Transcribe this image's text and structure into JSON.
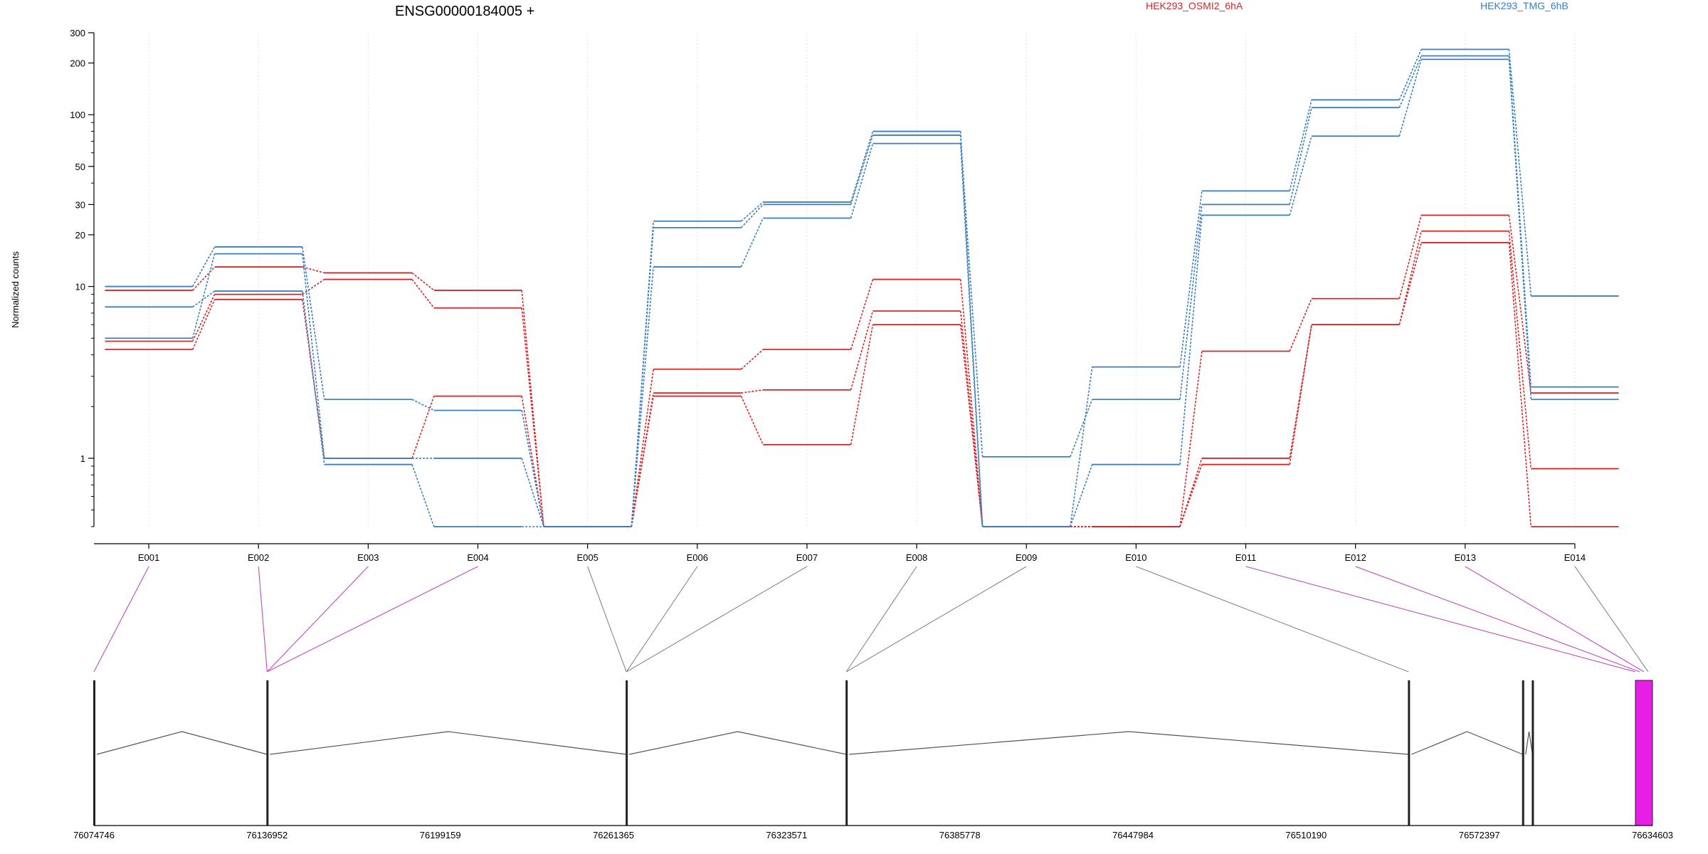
{
  "chart_data": {
    "type": "line",
    "title": "ENSG00000184005 +",
    "ylabel": "Normalized counts",
    "xlabel": "",
    "y_scale": "log",
    "y_ticks": [
      1,
      10,
      20,
      30,
      50,
      100,
      200,
      300
    ],
    "ylim": [
      0.4,
      300
    ],
    "legend_placement": "top",
    "categories": [
      "E001",
      "E002",
      "E003",
      "E004",
      "E005",
      "E006",
      "E007",
      "E008",
      "E009",
      "E010",
      "E011",
      "E012",
      "E013",
      "E014"
    ],
    "series": [
      {
        "name": "HEK293_OSMI2_6hA",
        "color": "#d62728",
        "values": [
          9.5,
          13,
          12,
          9.5,
          0.4,
          3.3,
          4.3,
          11,
          0.4,
          0.4,
          4.2,
          8.5,
          26,
          2.4
        ]
      },
      {
        "name": "",
        "color": "#d62728",
        "values": [
          4.8,
          9,
          11,
          7.5,
          0.4,
          2.4,
          2.5,
          7.2,
          0.4,
          0.4,
          1.0,
          6.0,
          21,
          0.87
        ]
      },
      {
        "name": "",
        "color": "#d62728",
        "values": [
          4.3,
          8.4,
          1.0,
          2.3,
          0.4,
          2.3,
          1.2,
          6.0,
          0.4,
          0.4,
          0.92,
          6.0,
          18,
          0.4
        ]
      },
      {
        "name": "HEK293_TMG_6hB",
        "color": "#3a7fc0",
        "values": [
          10,
          17,
          2.2,
          1.9,
          0.4,
          24,
          31,
          80,
          0.4,
          3.4,
          36,
          122,
          240,
          8.8
        ]
      },
      {
        "name": "",
        "color": "#3a7fc0",
        "values": [
          5.0,
          15.5,
          1.0,
          1.0,
          0.4,
          22,
          30,
          76,
          1.02,
          2.2,
          30,
          110,
          220,
          2.6
        ]
      },
      {
        "name": "",
        "color": "#3a7fc0",
        "values": [
          7.6,
          9.4,
          0.92,
          0.4,
          0.4,
          13,
          25,
          68,
          0.4,
          0.92,
          26,
          75,
          210,
          2.2
        ]
      }
    ],
    "genomic_ticks": [
      "76074746",
      "76136952",
      "76199159",
      "76261365",
      "76323571",
      "76385778",
      "76447984",
      "76510190",
      "76572397",
      "76634603"
    ],
    "exon_starts": [
      76074746,
      76136952,
      76136952,
      76136952,
      76266000,
      76266000,
      76266000,
      76345000,
      76345000,
      76547000,
      76588000,
      76588000,
      76588000,
      76591500
    ],
    "exon_highlight": [
      true,
      true,
      true,
      true,
      false,
      false,
      false,
      false,
      false,
      false,
      true,
      true,
      true,
      false
    ]
  }
}
